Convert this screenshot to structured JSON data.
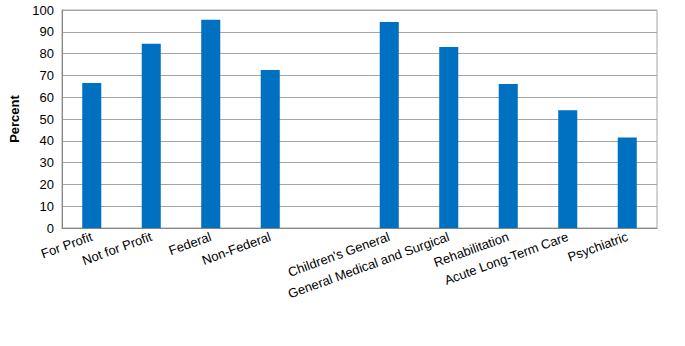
{
  "chart_data": {
    "type": "bar",
    "y_label": "Percent",
    "categories": [
      "For Profit",
      "Not for Profit",
      "Federal",
      "Non-Federal",
      null,
      "Children's General",
      "General Medical and Surgical",
      "Rehabilitation",
      "Acute Long-Term Care",
      "Psychiatric"
    ],
    "values": [
      66.5,
      84.5,
      95.5,
      72.5,
      null,
      94.5,
      83,
      66,
      54,
      41.5
    ],
    "color": "#0070c0",
    "ylim": [
      0,
      100
    ],
    "yticks": [
      0,
      10,
      20,
      30,
      40,
      50,
      60,
      70,
      80,
      90,
      100
    ],
    "grid": true
  }
}
